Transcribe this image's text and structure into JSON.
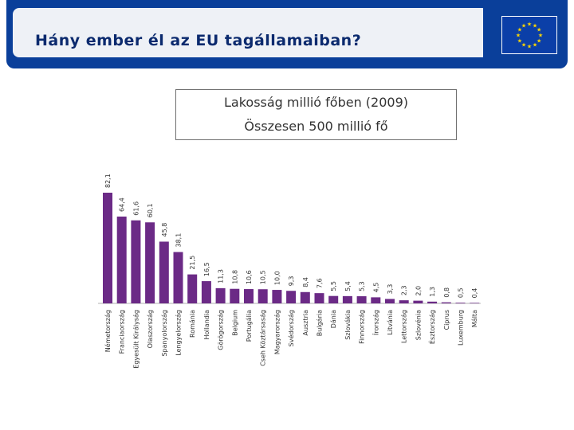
{
  "slide": {
    "title": "Hány ember él az EU tagállamaiban?"
  },
  "colors": {
    "header": "#0a3f9a",
    "bar": "#6b2a86",
    "flag": "#0b3fa8",
    "star": "#ffd700"
  },
  "chart_data": {
    "type": "bar",
    "title": "Lakosság millió főben (2009)",
    "subtitle": "Összesen 500 millió fő",
    "xlabel": "",
    "ylabel": "",
    "ylim": [
      0,
      82.1
    ],
    "grid": false,
    "categories": [
      "Németország",
      "Franciaország",
      "Egyesült Királyság",
      "Olaszország",
      "Spanyolország",
      "Lengyelország",
      "Románia",
      "Hollandia",
      "Görögország",
      "Belgium",
      "Portugália",
      "Cseh Köztársaság",
      "Magyarország",
      "Svédország",
      "Ausztria",
      "Bulgária",
      "Dánia",
      "Szlovákia",
      "Finnország",
      "Írország",
      "Litvánia",
      "Lettország",
      "Szlovénia",
      "Észtország",
      "Ciprus",
      "Luxemburg",
      "Málta"
    ],
    "values": [
      82.1,
      64.4,
      61.6,
      60.1,
      45.8,
      38.1,
      21.5,
      16.5,
      11.3,
      10.8,
      10.6,
      10.5,
      10.0,
      9.3,
      8.4,
      7.6,
      5.5,
      5.4,
      5.3,
      4.5,
      3.3,
      2.3,
      2.0,
      1.3,
      0.8,
      0.5,
      0.4
    ],
    "value_labels": [
      "82,1",
      "64,4",
      "61,6",
      "60,1",
      "45,8",
      "38,1",
      "21,5",
      "16,5",
      "11,3",
      "10,8",
      "10,6",
      "10,5",
      "10,0",
      "9,3",
      "8,4",
      "7,6",
      "5,5",
      "5,4",
      "5,3",
      "4,5",
      "3,3",
      "2,3",
      "2,0",
      "1,3",
      "0,8",
      "0,5",
      "0,4"
    ]
  }
}
